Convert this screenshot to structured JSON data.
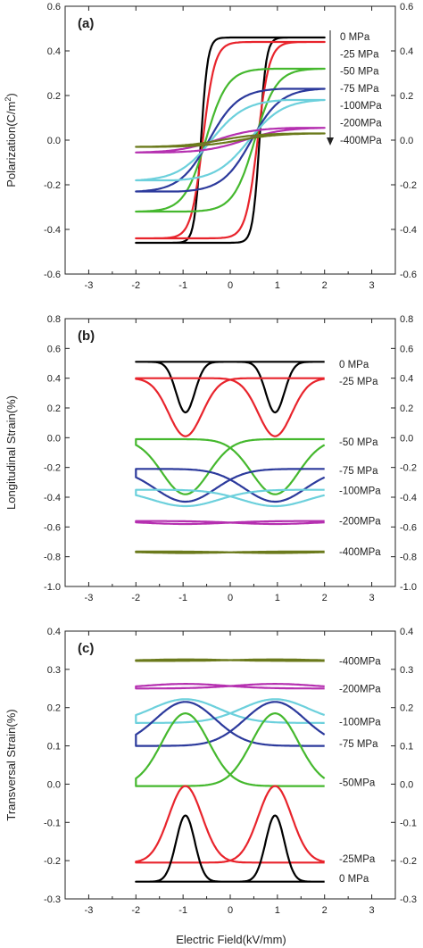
{
  "figure": {
    "xlabel": "Electric Field(kV/mm)"
  },
  "colors": {
    "0 MPa": "#000000",
    "-25 MPa": "#e8242c",
    "-50 MPa": "#45b82e",
    "-75 MPa": "#2c3a9c",
    "-100 MPa": "#6cd0dc",
    "-200 MPa": "#b530b0",
    "-400 MPa": "#6b7a1c"
  },
  "chart_data": [
    {
      "type": "line",
      "panel": "(a)",
      "ylabel": "Polarization(C/m²)",
      "xlim": [
        -3.5,
        3.5
      ],
      "ylim": [
        -0.6,
        0.6
      ],
      "xticks": [
        -3,
        -2,
        -1,
        0,
        1,
        2,
        3
      ],
      "yticks": [
        -0.6,
        -0.4,
        -0.2,
        0.0,
        0.2,
        0.4,
        0.6
      ],
      "ytick_labels": [
        "-0.6",
        "-0.4",
        "-0.2",
        "0.0",
        "0.2",
        "0.4",
        "0.6"
      ],
      "legend_labels": [
        "0 MPa",
        "-25 MPa",
        "-50 MPa",
        "-75 MPa",
        "-100MPa",
        "-200MPa",
        "-400MPa"
      ],
      "series": [
        {
          "stress": "0 MPa",
          "color_key": "0 MPa",
          "Pmax": 0.46,
          "Pr": 0.4,
          "Ec": 0.62,
          "sharp": 7.0
        },
        {
          "stress": "-25 MPa",
          "color_key": "-25 MPa",
          "Pmax": 0.44,
          "Pr": 0.3,
          "Ec": 0.58,
          "sharp": 4.0
        },
        {
          "stress": "-50 MPa",
          "color_key": "-50 MPa",
          "Pmax": 0.32,
          "Pr": 0.16,
          "Ec": 0.52,
          "sharp": 2.2
        },
        {
          "stress": "-75 MPa",
          "color_key": "-75 MPa",
          "Pmax": 0.23,
          "Pr": 0.07,
          "Ec": 0.45,
          "sharp": 1.6
        },
        {
          "stress": "-100 MPa",
          "color_key": "-100 MPa",
          "Pmax": 0.18,
          "Pr": 0.035,
          "Ec": 0.4,
          "sharp": 1.4
        },
        {
          "stress": "-200 MPa",
          "color_key": "-200 MPa",
          "Pmax": 0.055,
          "Pr": 0.01,
          "Ec": 0.3,
          "sharp": 1.2
        },
        {
          "stress": "-400 MPa",
          "color_key": "-400 MPa",
          "Pmax": 0.03,
          "Pr": 0.004,
          "Ec": 0.2,
          "sharp": 1.2
        }
      ]
    },
    {
      "type": "line",
      "panel": "(b)",
      "ylabel": "Longitudinal Strain(%)",
      "xlim": [
        -3.5,
        3.5
      ],
      "ylim": [
        -1.0,
        0.8
      ],
      "xticks": [
        -3,
        -2,
        -1,
        0,
        1,
        2,
        3
      ],
      "yticks": [
        -1.0,
        -0.8,
        -0.6,
        -0.4,
        -0.2,
        0.0,
        0.2,
        0.4,
        0.6,
        0.8
      ],
      "ytick_labels": [
        "-1.0",
        "-0.8",
        "-0.6",
        "-0.4",
        "-0.2",
        "0.0",
        "0.2",
        "0.4",
        "0.6",
        "0.8"
      ],
      "series": [
        {
          "label": "0 MPa",
          "color_key": "0 MPa",
          "top": 0.51,
          "min": 0.17,
          "width": 0.28
        },
        {
          "label": "-25 MPa",
          "color_key": "-25 MPa",
          "top": 0.4,
          "min": 0.01,
          "width": 0.5
        },
        {
          "label": "-50 MPa",
          "color_key": "-50 MPa",
          "top": -0.01,
          "min": -0.38,
          "width": 0.7
        },
        {
          "label": "-75 MPa",
          "color_key": "-75 MPa",
          "top": -0.21,
          "min": -0.43,
          "width": 0.9
        },
        {
          "label": "-100MPa",
          "color_key": "-100 MPa",
          "top": -0.35,
          "min": -0.46,
          "width": 1.0
        },
        {
          "label": "-200MPa",
          "color_key": "-200 MPa",
          "top": -0.56,
          "min": -0.58,
          "width": 1.2
        },
        {
          "label": "-400MPa",
          "color_key": "-400 MPa",
          "top": -0.765,
          "min": -0.775,
          "width": 1.2
        }
      ]
    },
    {
      "type": "line",
      "panel": "(c)",
      "ylabel": "Transversal Strain(%)",
      "xlim": [
        -3.5,
        3.5
      ],
      "ylim": [
        -0.3,
        0.4
      ],
      "xticks": [
        -3,
        -2,
        -1,
        0,
        1,
        2,
        3
      ],
      "yticks": [
        -0.3,
        -0.2,
        -0.1,
        0.0,
        0.1,
        0.2,
        0.3,
        0.4
      ],
      "ytick_labels": [
        "-0.3",
        "-0.2",
        "-0.1",
        "0.0",
        "0.1",
        "0.2",
        "0.3",
        "0.4"
      ],
      "series": [
        {
          "label": "-400MPa",
          "color_key": "-400 MPa",
          "top": 0.322,
          "min": 0.326,
          "width": 1.2
        },
        {
          "label": "-200MPa",
          "color_key": "-200 MPa",
          "top": 0.25,
          "min": 0.262,
          "width": 1.2
        },
        {
          "label": "-100MPa",
          "color_key": "-100 MPa",
          "top": 0.16,
          "min": 0.222,
          "width": 1.0
        },
        {
          "label": "-75 MPa",
          "color_key": "-75 MPa",
          "top": 0.1,
          "min": 0.215,
          "width": 0.9
        },
        {
          "label": "-50MPa",
          "color_key": "-50 MPa",
          "top": -0.005,
          "min": 0.185,
          "width": 0.7
        },
        {
          "label": "-25MPa",
          "color_key": "-25 MPa",
          "top": -0.205,
          "min": -0.005,
          "width": 0.5
        },
        {
          "label": "0 MPa",
          "color_key": "0 MPa",
          "top": -0.255,
          "min": -0.082,
          "width": 0.28
        }
      ]
    }
  ]
}
